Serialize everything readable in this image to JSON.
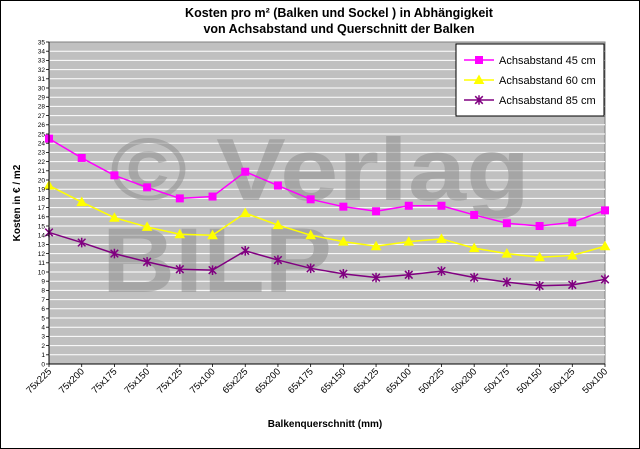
{
  "chart_data": {
    "type": "line",
    "title_line1": "Kosten pro m² (Balken und Sockel ) in Abhängigkeit",
    "title_line2": "von Achsabstand und Querschnitt der Balken",
    "xlabel": "Balkenquerschnitt (mm)",
    "ylabel": "Kosten in € / m2",
    "ylim": [
      0,
      35
    ],
    "ytick_step": 1,
    "grid": true,
    "legend_position": "top-right",
    "categories": [
      "75x225",
      "75x200",
      "75x175",
      "75x150",
      "75x125",
      "75x100",
      "65x225",
      "65x200",
      "65x175",
      "65x150",
      "65x125",
      "65x100",
      "50x225",
      "50x200",
      "50x175",
      "50x150",
      "50x125",
      "50x100"
    ],
    "series": [
      {
        "name": "Achsabstand 45 cm",
        "color": "#ff00ff",
        "marker": "square",
        "values": [
          24.5,
          22.4,
          20.5,
          19.2,
          18.0,
          18.2,
          20.9,
          19.4,
          17.9,
          17.1,
          16.6,
          17.2,
          17.2,
          16.2,
          15.3,
          15.0,
          15.4,
          16.7
        ]
      },
      {
        "name": "Achsabstand 60 cm",
        "color": "#ffff00",
        "marker": "triangle",
        "values": [
          19.4,
          17.6,
          15.9,
          14.9,
          14.1,
          14.0,
          16.4,
          15.1,
          14.0,
          13.3,
          12.8,
          13.3,
          13.6,
          12.6,
          12.0,
          11.6,
          11.8,
          12.8
        ]
      },
      {
        "name": "Achsabstand 85 cm",
        "color": "#800080",
        "marker": "star",
        "values": [
          14.3,
          13.2,
          12.0,
          11.1,
          10.3,
          10.2,
          12.3,
          11.3,
          10.4,
          9.8,
          9.4,
          9.7,
          10.1,
          9.4,
          8.9,
          8.5,
          8.6,
          9.2
        ]
      }
    ]
  },
  "watermark": {
    "line1": "© Verlag",
    "line2": "BILP",
    "color": "#8f8f8f"
  },
  "colors": {
    "plot_bg": "#c0c0c0",
    "grid": "#ffffff",
    "frame": "#808080"
  }
}
